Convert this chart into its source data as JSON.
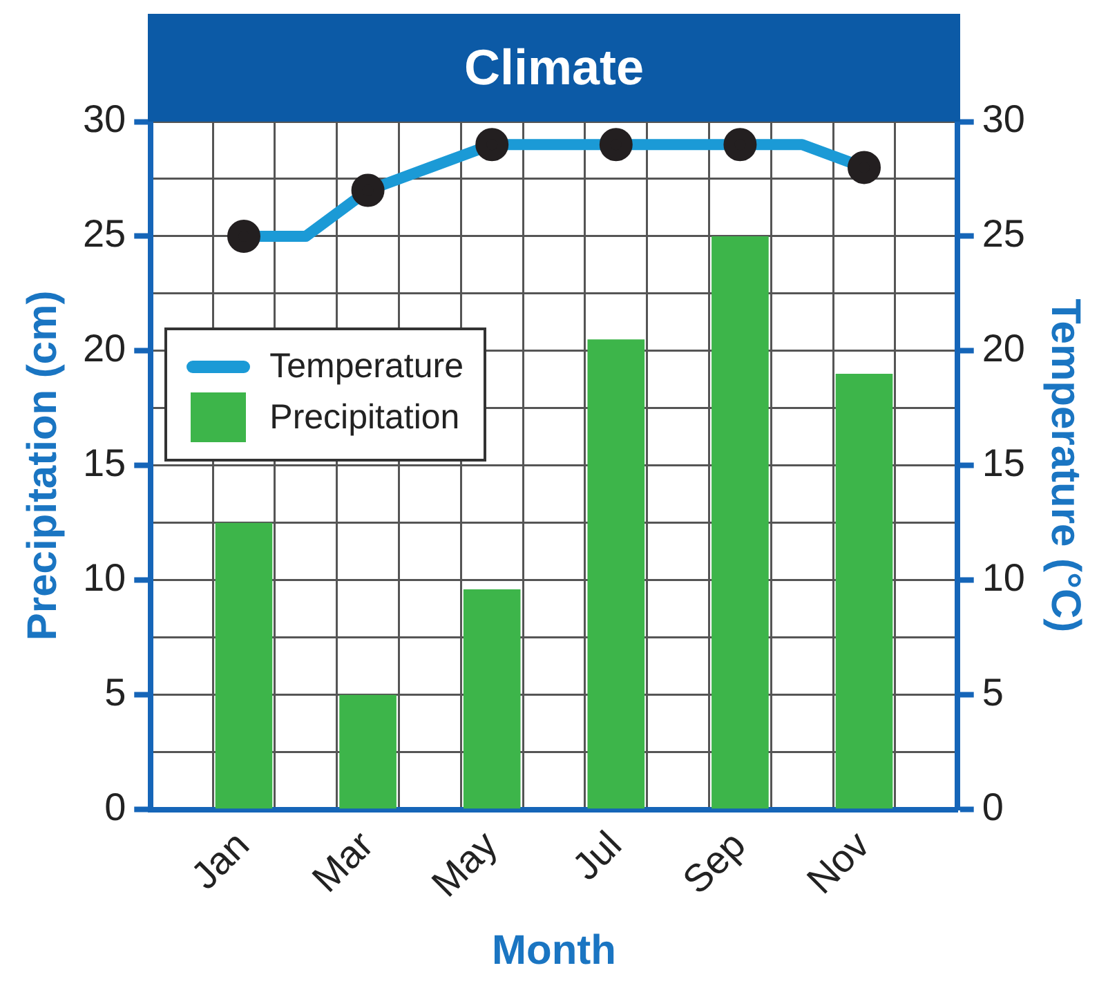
{
  "chart_data": {
    "type": "bar",
    "title": "Climate",
    "xlabel": "Month",
    "ylabel": "Precipitation (cm)",
    "y2label": "Temperature (°C)",
    "categories": [
      null,
      "Jan",
      null,
      "Mar",
      null,
      "May",
      null,
      "Jul",
      null,
      "Sep",
      null,
      "Nov",
      null
    ],
    "series": [
      {
        "name": "Temperature",
        "type": "line",
        "axis": "y2",
        "color": "#1b9ad6",
        "values": [
          null,
          25,
          25,
          27,
          28,
          29,
          29,
          29,
          29,
          29,
          29,
          28,
          null
        ]
      },
      {
        "name": "Precipitation",
        "color": "#3db54a",
        "values": [
          null,
          12.5,
          null,
          5,
          null,
          9.6,
          null,
          20.5,
          null,
          25,
          null,
          19,
          null
        ]
      }
    ],
    "ylim": [
      0,
      30
    ],
    "yticks": [
      0,
      {
        "value": 2.5,
        "label": null
      },
      5,
      {
        "value": 7.5,
        "label": null
      },
      10,
      {
        "value": 12.5,
        "label": null
      },
      15,
      {
        "value": 17.5,
        "label": null
      },
      20,
      {
        "value": 22.5,
        "label": null
      },
      25,
      {
        "value": 27.5,
        "label": null
      },
      30
    ],
    "y2lim": [
      0,
      30
    ],
    "y2ticks": [
      0,
      5,
      10,
      15,
      20,
      25,
      30
    ],
    "grid": true,
    "legend": "left",
    "marker": "circle",
    "line_style": "solid"
  }
}
